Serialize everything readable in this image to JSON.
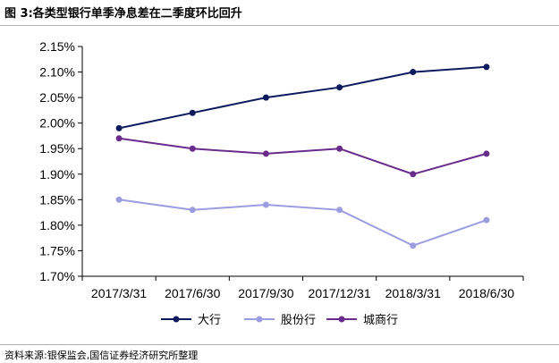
{
  "header": {
    "title": "图 3:各类型银行单季净息差在二季度环比回升"
  },
  "footer": {
    "source": "资料来源:银保监会,国信证券经济研究所整理"
  },
  "chart_data": {
    "type": "line",
    "categories": [
      "2017/3/31",
      "2017/6/30",
      "2017/9/30",
      "2017/12/31",
      "2018/3/31",
      "2018/6/30"
    ],
    "y_ticks": [
      "1.70%",
      "1.75%",
      "1.80%",
      "1.85%",
      "1.90%",
      "1.95%",
      "2.00%",
      "2.05%",
      "2.10%",
      "2.15%"
    ],
    "ylim": [
      1.7,
      2.15
    ],
    "y_unit": "%",
    "grid": false,
    "legend_position": "bottom",
    "series": [
      {
        "name": "大行",
        "color": "#0d1b5e",
        "values": [
          1.99,
          2.02,
          2.05,
          2.07,
          2.1,
          2.11
        ]
      },
      {
        "name": "股份行",
        "color": "#9c9ce0",
        "values": [
          1.85,
          1.83,
          1.84,
          1.83,
          1.76,
          1.81
        ]
      },
      {
        "name": "城商行",
        "color": "#6a2c8c",
        "values": [
          1.97,
          1.95,
          1.94,
          1.95,
          1.9,
          1.94
        ]
      }
    ]
  }
}
